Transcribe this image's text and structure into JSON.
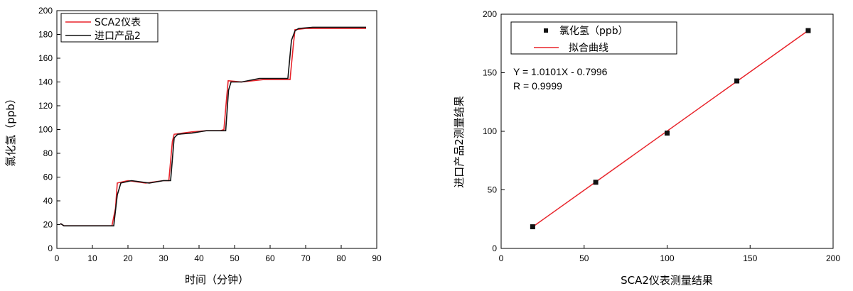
{
  "chart_data": [
    {
      "type": "line",
      "xlabel": "时间（分钟）",
      "ylabel": "氯化氢（ppb）",
      "xlim": [
        0,
        90
      ],
      "ylim": [
        0,
        200
      ],
      "xticks": [
        "0",
        "10",
        "20",
        "30",
        "40",
        "50",
        "60",
        "70",
        "80",
        "90"
      ],
      "yticks": [
        "0",
        "20",
        "40",
        "60",
        "80",
        "100",
        "120",
        "140",
        "160",
        "180",
        "200"
      ],
      "grid": false,
      "legend_position": "top-left",
      "series": [
        {
          "name": "SCA2仪表",
          "color": "#e8232a",
          "x": [
            1,
            2,
            4,
            8,
            12,
            15.5,
            16.5,
            17,
            20,
            25,
            30,
            31.5,
            32.5,
            33,
            38,
            42,
            46,
            47,
            47.8,
            48.2,
            52,
            58,
            65,
            65.6,
            66.5,
            67,
            70,
            80,
            87
          ],
          "y": [
            21,
            19,
            19,
            19,
            19,
            19,
            34,
            55,
            57,
            55,
            57,
            57,
            90,
            96,
            98,
            99,
            99,
            100,
            128,
            141,
            140,
            142,
            142,
            142,
            170,
            184,
            185,
            185,
            185
          ]
        },
        {
          "name": "进口产品2",
          "color": "#111111",
          "x": [
            1,
            2,
            4,
            8,
            12,
            16,
            17,
            18,
            21,
            26,
            30,
            32,
            33,
            34,
            38,
            42,
            46,
            47.5,
            48.3,
            49,
            52,
            57,
            60,
            65,
            66,
            67,
            68,
            72,
            80,
            87
          ],
          "y": [
            21,
            19,
            19,
            19,
            19,
            19,
            45,
            55,
            57,
            55,
            57,
            57,
            93,
            96,
            97,
            99,
            99,
            99,
            133,
            140,
            140,
            143,
            143,
            143,
            175,
            183,
            185,
            186,
            186,
            186
          ]
        }
      ]
    },
    {
      "type": "scatter",
      "xlabel": "SCA2仪表测量结果",
      "ylabel": "进口产品2测量结果",
      "xlim": [
        0,
        200
      ],
      "ylim": [
        0,
        200
      ],
      "xticks": [
        "0",
        "50",
        "100",
        "150",
        "200"
      ],
      "yticks": [
        "0",
        "50",
        "100",
        "150",
        "200"
      ],
      "grid": false,
      "legend_position": "top-left",
      "series": [
        {
          "name": "氯化氢（ppb）",
          "marker": "square",
          "color": "#111111",
          "x": [
            19,
            57,
            100,
            142,
            185
          ],
          "y": [
            18.5,
            56.5,
            98.5,
            143,
            186
          ]
        },
        {
          "name": "拟合曲线",
          "color": "#e8232a",
          "x": [
            19,
            185
          ],
          "y": [
            18.39,
            186.07
          ]
        }
      ],
      "annotations": [
        "Y = 1.0101X - 0.7996",
        "R =  0.9999"
      ]
    }
  ]
}
